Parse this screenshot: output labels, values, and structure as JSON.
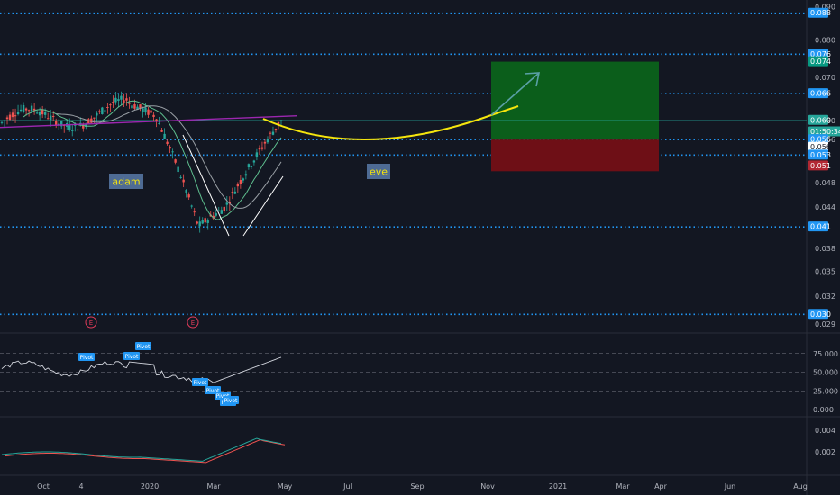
{
  "chart_data": {
    "type": "candlestick",
    "price_axis": {
      "ticks": [
        "0.090",
        "0.088",
        "0.080",
        "0.076",
        "0.074",
        "0.070",
        "0.066",
        "0.060",
        "0.056",
        "0.053",
        "0.051",
        "0.048",
        "0.044",
        "0.041",
        "0.038",
        "0.035",
        "0.032",
        "0.030",
        "0.029"
      ]
    },
    "price_labels": [
      {
        "text": "0.088",
        "kind": "level"
      },
      {
        "text": "0.076",
        "kind": "level"
      },
      {
        "text": "0.074",
        "kind": "target",
        "color": "#089981"
      },
      {
        "text": "0.066",
        "kind": "level"
      },
      {
        "text": "0.060",
        "kind": "last",
        "color": "#26a69a"
      },
      {
        "text": "01:50:34",
        "kind": "countdown",
        "color": "#26a69a"
      },
      {
        "text": "0.056",
        "kind": "level"
      },
      {
        "text": "0.056",
        "kind": "entry",
        "color": "#ffffff"
      },
      {
        "text": "0.053",
        "kind": "level"
      },
      {
        "text": "0.051",
        "kind": "stop",
        "color": "#b22833"
      },
      {
        "text": "0.041",
        "kind": "level"
      },
      {
        "text": "0.030",
        "kind": "level"
      }
    ],
    "horizontal_levels": [
      0.088,
      0.076,
      0.066,
      0.056,
      0.053,
      0.041,
      0.03
    ],
    "time_axis": [
      "Oct",
      "4",
      "2020",
      "Mar",
      "May",
      "Jul",
      "Sep",
      "Nov",
      "2021",
      "Mar",
      "Apr",
      "Jun",
      "Aug"
    ],
    "annotations": [
      {
        "text": "adam"
      },
      {
        "text": "eve"
      }
    ],
    "earnings_markers": [
      "E",
      "E"
    ],
    "long_position": {
      "entry": 0.056,
      "target": 0.074,
      "stop": 0.051
    },
    "rsi": {
      "ticks": [
        "75.000",
        "50.000",
        "25.000",
        "0.000"
      ],
      "pivot_labels": [
        "Pivot",
        "Pivot",
        "Pivot",
        "Pivot",
        "Pivot",
        "Pivot",
        "Pivot",
        "Pivot"
      ]
    },
    "macd": {
      "ticks": [
        "0.004",
        "0.002"
      ]
    }
  }
}
